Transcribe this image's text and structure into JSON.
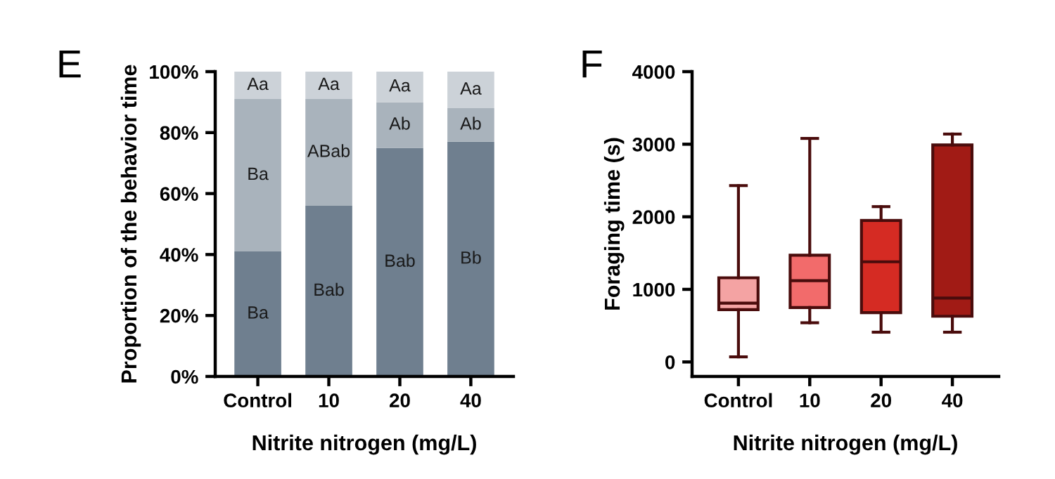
{
  "chart_data": [
    {
      "type": "bar",
      "title": "E",
      "stacked": true,
      "xlabel": "Nitrite nitrogen (mg/L)",
      "ylabel": "Proportion of the behavior time",
      "categories": [
        "Control",
        "10",
        "20",
        "40"
      ],
      "series": [
        {
          "color": "#6f7f8f",
          "values": [
            41,
            56,
            75,
            77
          ],
          "value_labels": [
            "Ba",
            "Bab",
            "Bab",
            "Bb"
          ]
        },
        {
          "color": "#a9b3bc",
          "values": [
            50,
            35,
            15,
            11
          ],
          "value_labels": [
            "Ba",
            "ABab",
            "Ab",
            "Ab"
          ]
        },
        {
          "color": "#ccd2d8",
          "values": [
            9,
            9,
            10,
            12
          ],
          "value_labels": [
            "Aa",
            "Aa",
            "Aa",
            "Aa"
          ]
        }
      ],
      "ylim": [
        0,
        100
      ],
      "yticks": [
        {
          "value": 0,
          "label": "0%"
        },
        {
          "value": 20,
          "label": "20%"
        },
        {
          "value": 40,
          "label": "40%"
        },
        {
          "value": 60,
          "label": "60%"
        },
        {
          "value": 80,
          "label": "80%"
        },
        {
          "value": 100,
          "label": "100%"
        }
      ],
      "grid": false
    },
    {
      "type": "box",
      "title": "F",
      "xlabel": "Nitrite nitrogen (mg/L)",
      "ylabel": "Foraging time (s)",
      "categories": [
        "Control",
        "10",
        "20",
        "40"
      ],
      "colors": [
        "#f4a3a3",
        "#f26b6b",
        "#d52b23",
        "#a11b15"
      ],
      "boxes": [
        {
          "low": 70,
          "q1": 720,
          "median": 810,
          "q3": 1160,
          "high": 2430
        },
        {
          "low": 540,
          "q1": 750,
          "median": 1120,
          "q3": 1470,
          "high": 3080
        },
        {
          "low": 410,
          "q1": 680,
          "median": 1380,
          "q3": 1950,
          "high": 2140
        },
        {
          "low": 410,
          "q1": 630,
          "median": 880,
          "q3": 2990,
          "high": 3140
        }
      ],
      "ylim": [
        -200,
        4000
      ],
      "yticks": [
        0,
        1000,
        2000,
        3000,
        4000
      ],
      "grid": false
    }
  ]
}
